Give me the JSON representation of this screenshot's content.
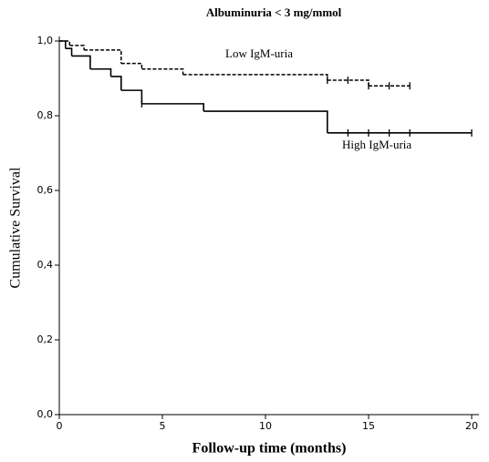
{
  "chart_data": {
    "type": "step",
    "title": "Albuminuria < 3 mg/mmol",
    "x_label": "Follow-up time (months)",
    "y_label": "Cumulative Survival",
    "xlim": [
      0,
      20
    ],
    "xticks": [
      0,
      5,
      10,
      15,
      20
    ],
    "ylim": [
      0,
      1
    ],
    "yticks": [
      {
        "value": 0,
        "label": "0,0"
      },
      {
        "value": 0.2,
        "label": "0,2"
      },
      {
        "value": 0.4,
        "label": "0,4"
      },
      {
        "value": 0.6,
        "label": "0,6"
      },
      {
        "value": 0.8,
        "label": "0,8"
      },
      {
        "value": 1,
        "label": "1,0"
      }
    ],
    "series": [
      {
        "name": "Low IgM-uria",
        "color": "#000000",
        "dashed": true,
        "x": [
          0,
          0.5,
          1.2,
          3,
          4,
          6,
          13,
          15,
          17
        ],
        "values": [
          1,
          0.988,
          0.976,
          0.94,
          0.925,
          0.91,
          0.895,
          0.88,
          0.88
        ],
        "censored": {
          "x": [
            13,
            14,
            15,
            16,
            17
          ],
          "values": [
            0.895,
            0.895,
            0.88,
            0.88,
            0.88
          ]
        }
      },
      {
        "name": "High IgM-uria",
        "color": "#000000",
        "dashed": false,
        "x": [
          0,
          0.3,
          0.6,
          1.5,
          2.5,
          3,
          4,
          7,
          13,
          20
        ],
        "values": [
          1,
          0.98,
          0.96,
          0.925,
          0.905,
          0.868,
          0.832,
          0.812,
          0.754,
          0.754
        ],
        "censored": {
          "x": [
            4,
            14,
            15,
            16,
            17,
            20
          ],
          "values": [
            0.832,
            0.754,
            0.754,
            0.754,
            0.754,
            0.754
          ]
        }
      }
    ]
  }
}
